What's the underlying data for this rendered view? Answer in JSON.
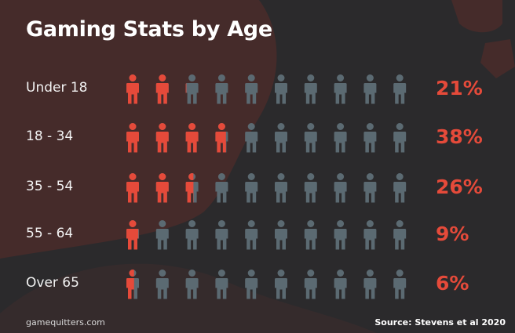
{
  "colors": {
    "background": "#2b2a2c",
    "blob": "#4a2c2a",
    "highlight": "#e54a3a",
    "figure": "#5b6a72",
    "text": "#f2f2f2"
  },
  "chart_data": {
    "type": "pictograph",
    "title": "Gaming Stats by Age",
    "icons_per_row": 10,
    "icon": "person-icon",
    "rows": [
      {
        "label": "Under 18",
        "percent": 21,
        "display": "21%"
      },
      {
        "label": "18 - 34",
        "percent": 38,
        "display": "38%"
      },
      {
        "label": "35 - 54",
        "percent": 26,
        "display": "26%"
      },
      {
        "label": "55 - 64",
        "percent": 9,
        "display": "9%"
      },
      {
        "label": "Over 65",
        "percent": 6,
        "display": "6%"
      }
    ]
  },
  "footer": {
    "site": "gamequitters.com",
    "source": "Source: Stevens et al 2020"
  }
}
